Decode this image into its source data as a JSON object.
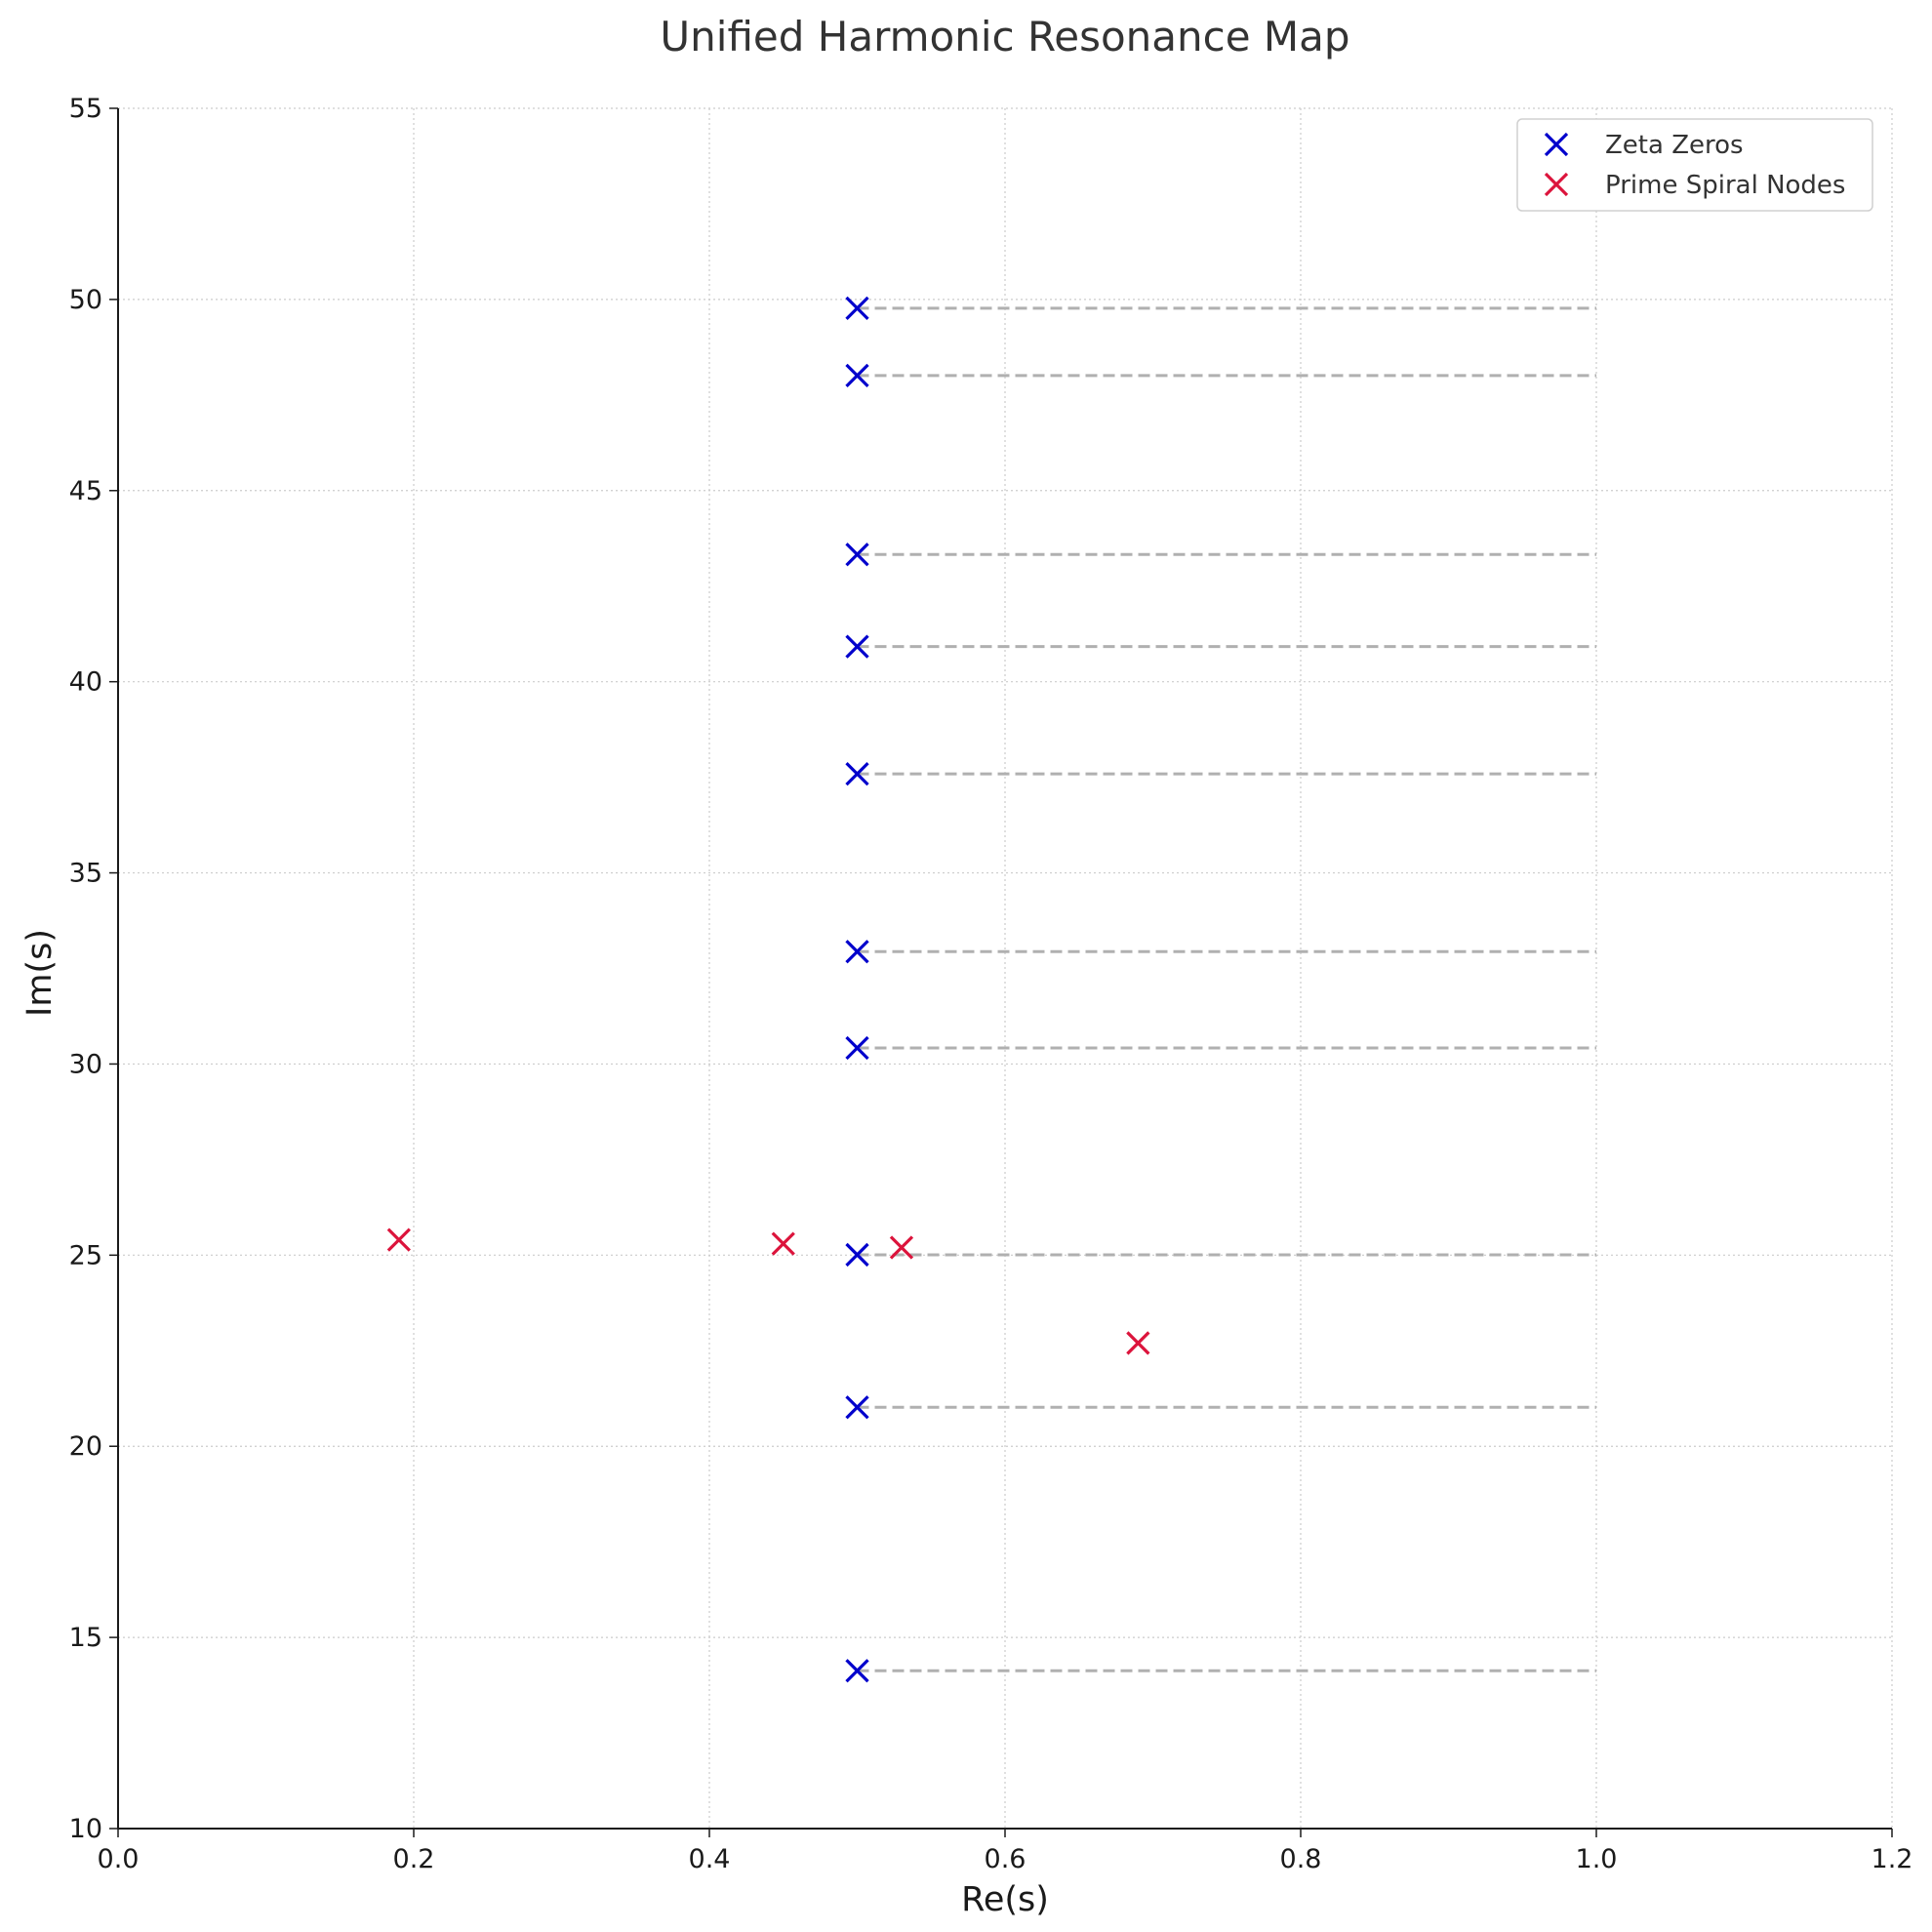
{
  "chart_data": {
    "type": "scatter",
    "title": "Unified Harmonic Resonance Map",
    "xlabel": "Re(s)",
    "ylabel": "Im(s)",
    "xlim": [
      0.0,
      1.2
    ],
    "ylim": [
      10,
      55
    ],
    "x_ticks": [
      "0.0",
      "0.2",
      "0.4",
      "0.6",
      "0.8",
      "1.0",
      "1.2"
    ],
    "y_ticks": [
      "10",
      "15",
      "20",
      "25",
      "30",
      "35",
      "40",
      "45",
      "50",
      "55"
    ],
    "grid": true,
    "legend_position": "top-right",
    "series": [
      {
        "name": "Zeta Zeros",
        "color": "#0000cc",
        "marker": "x",
        "points": [
          {
            "x": 0.5,
            "y": 14.13
          },
          {
            "x": 0.5,
            "y": 21.02
          },
          {
            "x": 0.5,
            "y": 25.01
          },
          {
            "x": 0.5,
            "y": 30.42
          },
          {
            "x": 0.5,
            "y": 32.94
          },
          {
            "x": 0.5,
            "y": 37.59
          },
          {
            "x": 0.5,
            "y": 40.92
          },
          {
            "x": 0.5,
            "y": 43.33
          },
          {
            "x": 0.5,
            "y": 48.01
          },
          {
            "x": 0.5,
            "y": 49.77
          }
        ]
      },
      {
        "name": "Prime Spiral Nodes",
        "color": "#dc143c",
        "marker": "x",
        "points": [
          {
            "x": 0.19,
            "y": 25.4
          },
          {
            "x": 0.45,
            "y": 25.3
          },
          {
            "x": 0.53,
            "y": 25.2
          },
          {
            "x": 0.69,
            "y": 22.7
          }
        ]
      }
    ],
    "reference_lines": {
      "style": "dashed",
      "color": "#b0b0b0",
      "x_start": 0.5,
      "x_end": 1.0,
      "y_values": [
        14.13,
        21.02,
        25.01,
        30.42,
        32.94,
        37.59,
        40.92,
        43.33,
        48.01,
        49.77
      ]
    }
  }
}
